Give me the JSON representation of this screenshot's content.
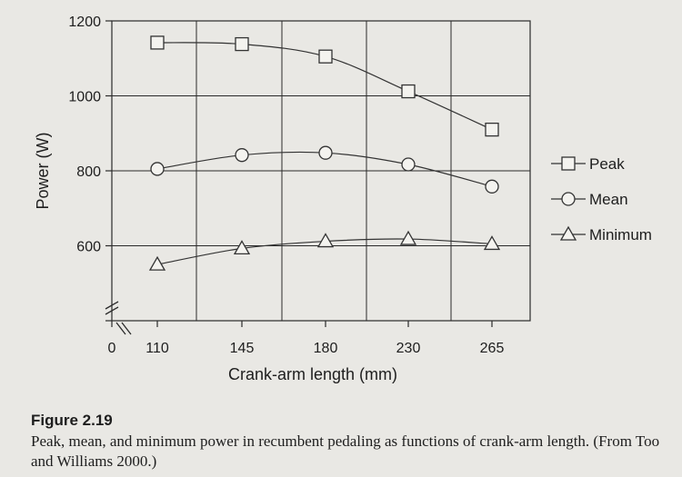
{
  "chart_data": {
    "type": "line",
    "categories": [
      "110",
      "145",
      "180",
      "230",
      "265"
    ],
    "x_axis_zero_label": "0",
    "series": [
      {
        "name": "Peak",
        "marker": "square",
        "values": [
          1142,
          1138,
          1105,
          1012,
          910
        ]
      },
      {
        "name": "Mean",
        "marker": "circle",
        "values": [
          805,
          842,
          848,
          817,
          758
        ]
      },
      {
        "name": "Minimum",
        "marker": "triangle",
        "values": [
          550,
          593,
          612,
          618,
          605
        ]
      }
    ],
    "xlabel": "Crank-arm length (mm)",
    "ylabel": "Power (W)",
    "yticks": [
      600,
      800,
      1000,
      1200
    ],
    "ylim": [
      400,
      1200
    ],
    "axis_break": true,
    "grid": true,
    "legend_position": "right",
    "colors": {
      "line": "#333333",
      "grid": "#2a2a2a",
      "marker_fill": "#f4f3ef",
      "background": "#e9e8e4"
    }
  },
  "caption": {
    "label": "Figure 2.19",
    "text": "Peak, mean, and minimum power in recumbent pedaling as functions of crank-arm length. (From Too and Williams 2000.)"
  }
}
